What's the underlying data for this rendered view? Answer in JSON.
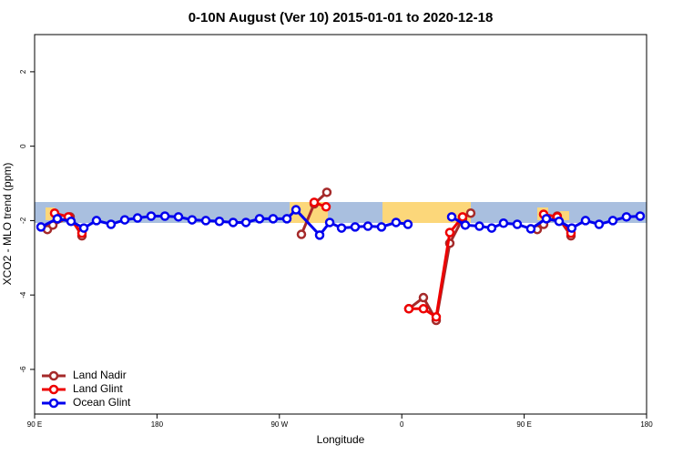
{
  "chart_data": {
    "type": "line",
    "title": "0-10N August (Ver 10)   2015-01-01 to 2020-12-18",
    "x_label": "Longitude",
    "y_label": "XCO2 - MLO trend (ppm)",
    "xlim": [
      90,
      540
    ],
    "ylim": [
      -7.2,
      3
    ],
    "xticks": [
      {
        "value": 90,
        "label": "90 E"
      },
      180,
      {
        "value": 270,
        "label": "90 W"
      },
      {
        "value": 360,
        "label": "0"
      },
      {
        "value": 450,
        "label": "90 E"
      },
      {
        "value": 540,
        "label": "180"
      }
    ],
    "yticks": [
      -6,
      -4,
      -2,
      0,
      2
    ],
    "legend": "bottom-left",
    "series": [
      {
        "name": "Land Nadir",
        "color": "#a52a2a",
        "x": [
          99.4,
          103.4,
          116.1,
          124.8,
          null,
          286.2,
          295.6,
          304.9,
          null,
          365.2,
          375.9,
          385.3,
          395.3,
          404.7,
          410.7,
          null,
          459.6,
          464.3,
          474.3,
          484.4
        ],
        "values": [
          -2.24,
          -2.12,
          -1.9,
          -2.41,
          null,
          -2.37,
          -1.55,
          -1.24,
          null,
          -4.37,
          -4.07,
          -4.68,
          -2.61,
          -1.95,
          -1.8,
          null,
          -2.24,
          -2.1,
          -1.88,
          -2.41
        ]
      },
      {
        "name": "Land Glint",
        "color": "#ee0000",
        "x": [
          104.7,
          114.8,
          124.8,
          null,
          295.6,
          304.3,
          null,
          365.2,
          375.9,
          385.3,
          395.3,
          404.7,
          null,
          464.3,
          474.3,
          484.4
        ],
        "values": [
          -1.8,
          -1.9,
          -2.34,
          null,
          -1.51,
          -1.63,
          null,
          -4.37,
          -4.37,
          -4.59,
          -2.32,
          -1.9,
          null,
          -1.83,
          -1.9,
          -2.34
        ]
      },
      {
        "name": "Ocean Glint",
        "color": "#0000ee",
        "x": [
          94.7,
          106.7,
          116.8,
          126.2,
          135.5,
          146.2,
          156.3,
          165.7,
          175.7,
          185.8,
          195.8,
          205.8,
          215.9,
          225.9,
          236,
          245.4,
          255.4,
          265.4,
          275.5,
          282.2,
          299.6,
          307,
          315.7,
          325.7,
          335.1,
          345.1,
          355.8,
          364.5,
          null,
          396.7,
          406.7,
          417.1,
          426.1,
          434.8,
          444.9,
          454.9,
          466.3,
          475.7,
          485,
          495.1,
          505.1,
          515.2,
          525.2,
          535.3
        ],
        "values": [
          -2.17,
          -1.95,
          -2.02,
          -2.2,
          -2.0,
          -2.1,
          -1.98,
          -1.93,
          -1.88,
          -1.88,
          -1.9,
          -1.98,
          -2.0,
          -2.02,
          -2.05,
          -2.05,
          -1.95,
          -1.95,
          -1.95,
          -1.71,
          -2.39,
          -2.05,
          -2.2,
          -2.17,
          -2.15,
          -2.17,
          -2.05,
          -2.1,
          null,
          -1.9,
          -2.12,
          -2.15,
          -2.2,
          -2.07,
          -2.1,
          -2.22,
          -1.95,
          -2.02,
          -2.2,
          -2.0,
          -2.1,
          -2.0,
          -1.9,
          -1.88
        ]
      }
    ]
  }
}
